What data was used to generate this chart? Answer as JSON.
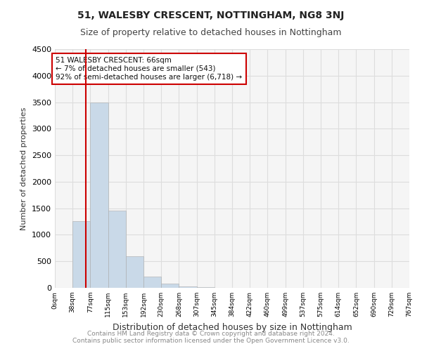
{
  "title1": "51, WALESBY CRESCENT, NOTTINGHAM, NG8 3NJ",
  "title2": "Size of property relative to detached houses in Nottingham",
  "xlabel": "Distribution of detached houses by size in Nottingham",
  "ylabel": "Number of detached properties",
  "footer": "Contains HM Land Registry data © Crown copyright and database right 2024.\nContains public sector information licensed under the Open Government Licence v3.0.",
  "bin_labels": [
    "0sqm",
    "38sqm",
    "77sqm",
    "115sqm",
    "153sqm",
    "192sqm",
    "230sqm",
    "268sqm",
    "307sqm",
    "345sqm",
    "384sqm",
    "422sqm",
    "460sqm",
    "499sqm",
    "537sqm",
    "575sqm",
    "614sqm",
    "652sqm",
    "690sqm",
    "729sqm",
    "767sqm"
  ],
  "bar_values": [
    0,
    1260,
    3500,
    1460,
    590,
    210,
    80,
    25,
    8,
    4,
    2,
    1,
    0,
    0,
    0,
    0,
    0,
    0,
    0,
    0
  ],
  "bar_color": "#c9d9e8",
  "property_line_x": 1.74,
  "annotation_text": "51 WALESBY CRESCENT: 66sqm\n← 7% of detached houses are smaller (543)\n92% of semi-detached houses are larger (6,718) →",
  "annotation_box_color": "#ffffff",
  "annotation_border_color": "#cc0000",
  "vline_color": "#cc0000",
  "ylim": [
    0,
    4500
  ],
  "yticks": [
    0,
    500,
    1000,
    1500,
    2000,
    2500,
    3000,
    3500,
    4000,
    4500
  ],
  "grid_color": "#dddddd",
  "background_color": "#f5f5f5"
}
